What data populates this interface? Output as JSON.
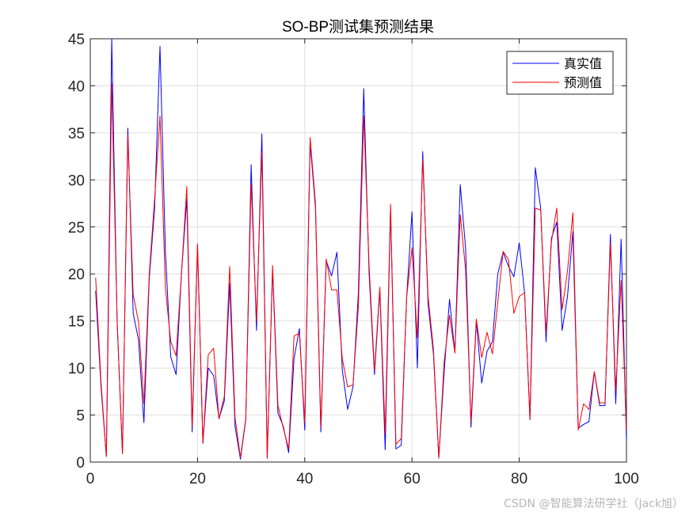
{
  "watermark": "CSDN @智能算法研学社（Jack旭）",
  "chart_data": {
    "type": "line",
    "title": "SO-BP测试集预测结果",
    "xlabel": "",
    "ylabel": "",
    "xlim": [
      0,
      100
    ],
    "ylim": [
      0,
      45
    ],
    "xticks": [
      0,
      20,
      40,
      60,
      80,
      100
    ],
    "yticks": [
      0,
      5,
      10,
      15,
      20,
      25,
      30,
      35,
      40,
      45
    ],
    "grid": true,
    "legend_position": "top-right",
    "x": [
      1,
      2,
      3,
      4,
      5,
      6,
      7,
      8,
      9,
      10,
      11,
      12,
      13,
      14,
      15,
      16,
      17,
      18,
      19,
      20,
      21,
      22,
      23,
      24,
      25,
      26,
      27,
      28,
      29,
      30,
      31,
      32,
      33,
      34,
      35,
      36,
      37,
      38,
      39,
      40,
      41,
      42,
      43,
      44,
      45,
      46,
      47,
      48,
      49,
      50,
      51,
      52,
      53,
      54,
      55,
      56,
      57,
      58,
      59,
      60,
      61,
      62,
      63,
      64,
      65,
      66,
      67,
      68,
      69,
      70,
      71,
      72,
      73,
      74,
      75,
      76,
      77,
      78,
      79,
      80,
      81,
      82,
      83,
      84,
      85,
      86,
      87,
      88,
      89,
      90,
      91,
      92,
      93,
      94,
      95,
      96,
      97,
      98,
      99,
      100
    ],
    "series": [
      {
        "name": "真实值",
        "color": "#0000ff",
        "values": [
          18.2,
          8.0,
          0.6,
          45.0,
          15.0,
          0.9,
          35.5,
          15.8,
          13.0,
          4.2,
          19.5,
          27.0,
          44.2,
          22.5,
          11.2,
          9.3,
          20.0,
          28.0,
          3.2,
          23.0,
          2.0,
          10.0,
          9.2,
          4.6,
          6.5,
          19.0,
          3.8,
          0.3,
          4.5,
          31.6,
          14.0,
          34.9,
          0.4,
          20.5,
          5.2,
          3.8,
          1.0,
          11.0,
          14.2,
          3.4,
          34.0,
          27.0,
          3.2,
          21.4,
          19.8,
          22.3,
          9.8,
          5.6,
          8.0,
          18.0,
          39.7,
          20.0,
          9.3,
          18.3,
          1.3,
          27.0,
          1.4,
          1.8,
          17.5,
          26.6,
          10.0,
          33.0,
          16.8,
          11.5,
          0.5,
          9.6,
          17.3,
          11.6,
          29.5,
          22.7,
          3.7,
          15.0,
          8.4,
          11.8,
          12.8,
          20.0,
          22.3,
          20.8,
          19.7,
          23.3,
          18.0,
          4.5,
          31.3,
          27.0,
          12.8,
          23.8,
          25.5,
          14.0,
          17.6,
          24.5,
          3.6,
          4.0,
          4.3,
          9.6,
          6.0,
          6.0,
          24.2,
          6.2,
          23.7,
          2.3
        ]
      },
      {
        "name": "预测值",
        "color": "#ff0000",
        "values": [
          19.6,
          8.5,
          0.6,
          40.3,
          15.2,
          0.9,
          34.8,
          17.8,
          14.9,
          6.2,
          20.0,
          28.0,
          36.8,
          18.6,
          12.8,
          11.3,
          20.0,
          29.3,
          3.8,
          23.2,
          2.0,
          11.4,
          12.1,
          4.6,
          7.0,
          20.8,
          4.7,
          0.5,
          4.6,
          29.6,
          15.0,
          33.0,
          0.5,
          20.9,
          6.0,
          3.6,
          1.4,
          13.4,
          13.7,
          4.2,
          34.5,
          27.5,
          3.7,
          21.6,
          18.3,
          18.3,
          11.0,
          8.0,
          8.2,
          16.5,
          36.8,
          20.9,
          9.7,
          18.6,
          3.0,
          27.4,
          1.9,
          2.5,
          17.5,
          22.8,
          13.2,
          32.2,
          17.6,
          12.0,
          0.4,
          10.7,
          15.6,
          11.6,
          26.3,
          20.4,
          4.3,
          15.2,
          11.1,
          13.8,
          11.5,
          17.0,
          22.4,
          21.5,
          15.8,
          17.6,
          18.0,
          4.6,
          27.0,
          26.8,
          13.7,
          23.4,
          27.0,
          16.2,
          20.3,
          26.5,
          3.4,
          6.2,
          5.6,
          9.6,
          6.3,
          6.3,
          23.3,
          7.6,
          19.3,
          3.4
        ]
      }
    ]
  }
}
